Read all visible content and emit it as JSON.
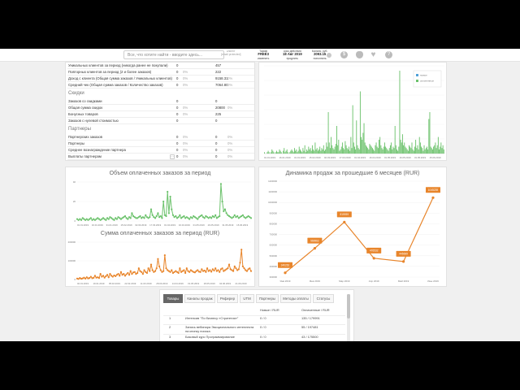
{
  "topbar": {
    "search_placeholder": "Все, что хотите найти - вводите здесь...",
    "user_line1": "клиент",
    "user_line2": "[email protected]",
    "tariff": {
      "label": "Тариф",
      "value": "FREE3",
      "action": "изменить"
    },
    "expiry": {
      "label": "срок действия",
      "value": "18 Авг 2019",
      "action": "продлить"
    },
    "balance": {
      "label": "Баланс, руб.",
      "value": "2093.15",
      "action": "пополнить"
    },
    "icons": [
      "gear-icon",
      "money-bag-icon",
      "lightbulb-icon",
      "heart-icon",
      "help-icon"
    ]
  },
  "stats": {
    "rows_top": [
      {
        "label": "Уникальных клиентов за период (никогда ранее не покупали)",
        "v1": "0",
        "p1": "",
        "v2": "457",
        "p2": ""
      },
      {
        "label": "Повторных клиентов за период (2 и более заказов)",
        "v1": "0",
        "p1": "0%",
        "v2": "222",
        "p2": ""
      },
      {
        "label": "Доход с клиента (Общая сумма заказов / Уникальных клиентов)",
        "v1": "0",
        "p1": "0%",
        "v2": "9158.31",
        "p2": "0%"
      },
      {
        "label": "Средний чек (Общая сумма заказов / Количество заказов)",
        "v1": "0",
        "p1": "0%",
        "v2": "7064.80",
        "p2": "0%"
      }
    ],
    "discounts_title": "Скидки",
    "discounts": [
      {
        "label": "Заказов со скидками",
        "v1": "0",
        "p1": "",
        "v2": "0",
        "p2": ""
      },
      {
        "label": "Общая сумма скидок",
        "v1": "0",
        "p1": "0%",
        "v2": "20800",
        "p2": "0%"
      },
      {
        "label": "Бонусных товаров",
        "v1": "0",
        "p1": "0%",
        "v2": "225",
        "p2": ""
      },
      {
        "label": "Заказов с нулевой стоимостью",
        "v1": "0",
        "p1": "",
        "v2": "0",
        "p2": ""
      }
    ],
    "partners_title": "Партнеры",
    "partners": [
      {
        "label": "Партнерских заказов",
        "v1": "0",
        "p1": "0%",
        "v2": "0",
        "p2": "0%"
      },
      {
        "label": "Партнеры",
        "v1": "0",
        "p1": "0%",
        "v2": "0",
        "p2": "0%"
      },
      {
        "label": "Среднее вознаграждение партнера",
        "v1": "0",
        "p1": "0%",
        "v2": "0",
        "p2": "0%"
      },
      {
        "label": "Выплаты партнерам",
        "v1": "0",
        "p1": "0%",
        "v2": "0",
        "p2": "0%"
      }
    ]
  },
  "colors": {
    "green": "#6cc26c",
    "orange": "#e8852b",
    "gray": "#bbbbbb"
  },
  "chart_data": [
    {
      "type": "bar",
      "title": "",
      "legend": [
        "новые",
        "оплаченные"
      ],
      "legend_position": "top-right",
      "x_start": "01.01.2019",
      "x_ticks": [
        "01.01.2019",
        "16.01.2019",
        "31.01.2019",
        "15.02.2019",
        "02.03.2019",
        "17.03.2019",
        "01.04.2019",
        "16.04.2019",
        "01.05.2019",
        "16.05.2019",
        "31.05.2019",
        "15.06.2019"
      ],
      "series": [
        {
          "name": "оплаченные",
          "values": [
            1,
            0,
            0,
            1,
            2,
            1,
            0,
            1,
            3,
            2,
            1,
            0,
            1,
            2,
            1,
            1,
            3,
            2,
            1,
            0,
            2,
            4,
            1,
            2,
            3,
            1,
            0,
            1,
            2,
            3,
            2,
            1,
            4,
            2,
            3,
            1,
            2,
            5,
            3,
            2,
            1,
            4,
            2,
            6,
            1,
            3,
            2,
            5,
            3,
            4,
            2,
            6,
            3,
            2,
            8,
            3,
            4,
            2,
            3,
            5,
            2,
            4,
            3,
            6,
            2,
            3,
            8,
            5,
            30,
            8,
            4,
            12,
            6,
            4,
            3,
            5,
            7,
            20,
            6,
            10,
            2,
            3,
            5,
            8,
            4,
            3,
            9,
            6,
            4,
            3,
            5,
            2,
            12,
            4,
            35,
            8,
            5,
            3,
            24,
            6,
            4,
            3,
            45,
            12,
            10,
            15,
            22,
            8,
            6,
            5,
            4,
            3,
            7,
            6,
            5,
            4,
            3,
            2,
            6,
            8,
            5,
            4,
            10,
            12,
            6,
            4,
            3,
            5,
            8,
            5,
            4,
            3,
            2,
            4,
            6,
            8,
            3,
            5,
            4,
            20,
            6,
            3,
            2,
            5,
            60,
            10,
            8,
            14,
            6,
            8,
            5,
            4,
            3,
            2,
            6,
            5,
            4,
            8,
            3,
            2,
            5,
            10,
            4,
            6,
            3,
            12,
            8,
            5,
            4,
            2,
            6,
            3,
            4,
            5,
            3,
            25,
            30,
            5,
            4,
            3,
            5,
            6,
            8,
            4,
            6,
            12,
            3,
            5,
            8,
            4,
            6,
            3
          ]
        }
      ]
    },
    {
      "type": "line",
      "title": "Объем оплаченных заказов за период",
      "ylim": [
        0,
        40
      ],
      "y_ticks": [
        "0",
        "20",
        "40"
      ],
      "x_ticks": [
        "01.01.2019",
        "16.01.2019",
        "31.01.2019",
        "15.02.2019",
        "02.03.2019",
        "17.03.2019",
        "01.04.2019",
        "16.04.2019",
        "01.05.2019",
        "16.05.2019",
        "31.05.2019",
        "15.06.2019"
      ],
      "series": [
        {
          "name": "",
          "values": [
            2,
            1,
            2,
            1,
            3,
            2,
            1,
            2,
            1,
            2,
            3,
            1,
            2,
            1,
            2,
            3,
            2,
            1,
            2,
            3,
            2,
            1,
            3,
            2,
            4,
            3,
            2,
            1,
            3,
            2,
            4,
            3,
            2,
            3,
            4,
            5,
            3,
            2,
            4,
            3,
            8,
            5,
            4,
            3,
            3,
            4,
            5,
            3,
            4,
            3,
            6,
            4,
            3,
            4,
            12,
            6,
            4,
            3,
            5,
            8,
            4,
            5,
            3,
            20,
            6,
            5,
            30,
            8,
            25,
            12,
            6,
            4,
            5,
            3,
            4,
            6,
            3,
            4,
            5,
            3,
            4,
            3,
            2,
            4,
            3,
            5,
            4,
            3,
            2,
            4,
            5,
            6,
            4,
            3,
            5,
            4,
            3,
            4,
            3,
            5,
            4,
            6,
            3,
            4,
            5,
            38,
            20,
            10,
            12,
            8,
            6,
            5,
            4,
            3,
            4,
            6,
            4,
            5,
            3,
            4,
            5,
            6,
            4,
            3,
            4,
            5,
            4,
            3
          ]
        }
      ]
    },
    {
      "type": "line",
      "title": "Сумма оплаченных заказов за период (RUR)",
      "ylim": [
        0,
        200000
      ],
      "y_ticks": [
        "0",
        "100000",
        "200000"
      ],
      "x_ticks": [
        "02.01.2019",
        "19.01.2019",
        "05.02.2019",
        "22.02.2019",
        "11.03.2019",
        "28.03.2019",
        "14.04.2019",
        "01.05.2019",
        "18.05.2019",
        "04.06.2019",
        "21.06.2019"
      ],
      "series": [
        {
          "name": "",
          "values": [
            5000,
            3000,
            8000,
            4000,
            6000,
            10000,
            5000,
            12000,
            6000,
            8000,
            15000,
            7000,
            9000,
            20000,
            10000,
            12000,
            8000,
            30000,
            15000,
            20000,
            10000,
            18000,
            25000,
            12000,
            30000,
            20000,
            15000,
            22000,
            18000,
            25000,
            30000,
            20000,
            40000,
            25000,
            30000,
            20000,
            28000,
            35000,
            25000,
            45000,
            30000,
            38000,
            40000,
            30000,
            35000,
            60000,
            45000,
            40000,
            30000,
            50000,
            40000,
            35000,
            60000,
            45000,
            80000,
            50000,
            40000,
            45000,
            60000,
            110000,
            70000,
            50000,
            40000,
            45000,
            130000,
            60000,
            50000,
            45000,
            40000,
            50000,
            35000,
            40000,
            45000,
            40000,
            35000,
            60000,
            40000,
            45000,
            50000,
            35000,
            60000,
            45000,
            40000,
            50000,
            45000,
            40000,
            38000,
            45000,
            50000,
            42000,
            40000,
            55000,
            45000,
            48000,
            40000,
            60000,
            45000,
            50000,
            42000,
            55000,
            48000,
            60000,
            45000,
            50000,
            40000,
            55000,
            60000,
            45000,
            50000,
            55000,
            60000,
            80000,
            55000,
            50000,
            45000,
            70000,
            60000,
            50000,
            55000,
            90000,
            160000,
            70000,
            60000,
            50000,
            45000,
            55000,
            60000,
            45000
          ]
        }
      ]
    },
    {
      "type": "line",
      "title": "Динамика продаж за прошедшие 6 месяцев (RUR)",
      "ylim": [
        300000,
        1200000
      ],
      "y_ticks": [
        "300000",
        "400000",
        "500000",
        "600000",
        "700000",
        "800000",
        "900000",
        "1000000",
        "1100000",
        "1200000"
      ],
      "categories": [
        "Янв 2019",
        "Фев 2019",
        "Мар 2019",
        "Апр 2019",
        "Май 2019",
        "Июн 2019"
      ],
      "values": [
        340262,
        569962,
        815939,
        476532,
        445699,
        1045239
      ],
      "data_labels": [
        "340262",
        "569962",
        "815939",
        "476532",
        "445699",
        "1045239"
      ]
    }
  ],
  "tabs": [
    "Товары",
    "Каналы продаж",
    "Реферер",
    "UTM",
    "Партнеры",
    "Методы оплаты",
    "Статусы"
  ],
  "table": {
    "headers": [
      "Новые / RUR",
      "Оплаченные / RUR"
    ],
    "rows": [
      {
        "num": "1",
        "name": "Интенсив \"По бизнесу «Стратегия»\"",
        "new": "0 / 0",
        "paid": "135 / 179991"
      },
      {
        "num": "2",
        "name": "Запись вебинара Эмоционального интеллекта на кнопку поиска",
        "new": "0 / 0",
        "paid": "55 / 197481"
      },
      {
        "num": "3",
        "name": "Базовый курс Программирование",
        "new": "0 / 0",
        "paid": "43 / 175500"
      }
    ]
  }
}
